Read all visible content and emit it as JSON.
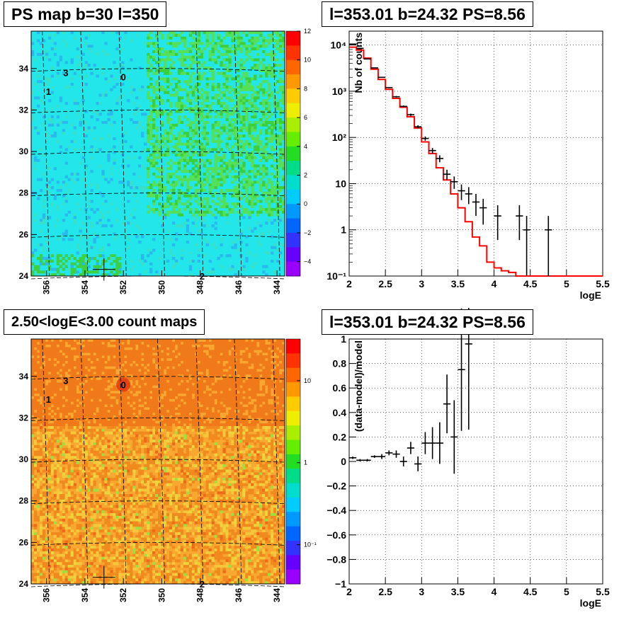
{
  "panels": {
    "ps_map": {
      "title": "PS map b=30 l=350"
    },
    "count_map": {
      "title": "2.50<logE<3.00 count maps"
    },
    "spectrum": {
      "title": "l=353.01 b=24.32 PS=8.56"
    },
    "residual": {
      "title": "l=353.01 b=24.32 PS=8.56"
    }
  },
  "colors": {
    "data_marker": "#000000",
    "model_line": "#ff0000",
    "grid": "#000000",
    "ps_map_background": "#22e6ea",
    "count_map_background": "#f8a830"
  },
  "chart_data": [
    {
      "id": "ps_map",
      "type": "heatmap",
      "title": "PS map b=30 l=350",
      "x_ticks": [
        "356",
        "354",
        "352",
        "350",
        "348",
        "346",
        "344"
      ],
      "y_ticks": [
        "24",
        "26",
        "28",
        "30",
        "32",
        "34"
      ],
      "xlim": [
        356.8,
        343.6
      ],
      "ylim": [
        24,
        35.8
      ],
      "colorbar_ticks": [
        "12",
        "10",
        "8",
        "6",
        "4",
        "2",
        "0",
        "−2",
        "−4"
      ],
      "colorbar_range": [
        -5,
        12
      ],
      "sources": [
        {
          "label": "0",
          "l": 352.0,
          "b": 33.6
        },
        {
          "label": "1",
          "l": 355.9,
          "b": 32.9
        },
        {
          "label": "2",
          "l": 347.9,
          "b": 24.0
        },
        {
          "label": "3",
          "l": 355.0,
          "b": 33.8
        }
      ],
      "marker": {
        "l": 353.01,
        "b": 24.32
      },
      "grid": true
    },
    {
      "id": "count_map",
      "type": "heatmap",
      "title": "2.50<logE<3.00 count maps",
      "x_ticks": [
        "356",
        "354",
        "352",
        "350",
        "348",
        "346",
        "344"
      ],
      "y_ticks": [
        "24",
        "26",
        "28",
        "30",
        "32",
        "34"
      ],
      "xlim": [
        356.8,
        343.6
      ],
      "ylim": [
        24,
        35.8
      ],
      "colorbar_ticks": [
        "10",
        "1",
        "10⁻¹"
      ],
      "colorbar_scale": "log",
      "sources": [
        {
          "label": "0",
          "l": 352.0,
          "b": 33.6
        },
        {
          "label": "1",
          "l": 355.9,
          "b": 32.9
        },
        {
          "label": "2",
          "l": 347.9,
          "b": 24.0
        },
        {
          "label": "3",
          "l": 355.0,
          "b": 33.8
        }
      ],
      "marker": {
        "l": 353.01,
        "b": 24.32
      },
      "grid": true
    },
    {
      "id": "spectrum",
      "type": "line",
      "title": "l=353.01 b=24.32 PS=8.56",
      "xlabel": "logE",
      "ylabel": "Nb of counts",
      "xlim": [
        2,
        5.5
      ],
      "ylim": [
        0.1,
        20000
      ],
      "yscale": "log",
      "x_ticks": [
        "2",
        "2.5",
        "3",
        "3.5",
        "4",
        "4.5",
        "5",
        "5.5"
      ],
      "y_ticks": [
        "10⁻¹",
        "1",
        "10",
        "10²",
        "10³",
        "10⁴"
      ],
      "grid": true,
      "series": [
        {
          "kind": "model",
          "bin_edges": [
            2.0,
            2.1,
            2.2,
            2.3,
            2.4,
            2.5,
            2.6,
            2.7,
            2.8,
            2.9,
            3.0,
            3.1,
            3.2,
            3.3,
            3.4,
            3.5,
            3.6,
            3.7,
            3.8,
            3.9,
            4.0,
            4.1,
            4.2,
            4.3,
            4.4,
            5.5
          ],
          "values": [
            9000,
            7800,
            5200,
            3000,
            1800,
            1100,
            700,
            450,
            280,
            160,
            80,
            45,
            22,
            12,
            6,
            3,
            1.5,
            0.7,
            0.45,
            0.2,
            0.15,
            0.13,
            0.12,
            0.1,
            0.1
          ]
        },
        {
          "kind": "data",
          "points": [
            {
              "x": 2.05,
              "y": 10500,
              "err": 100
            },
            {
              "x": 2.15,
              "y": 8500,
              "err": 90
            },
            {
              "x": 2.25,
              "y": 5000,
              "err": 70
            },
            {
              "x": 2.35,
              "y": 3200,
              "err": 55
            },
            {
              "x": 2.45,
              "y": 2000,
              "err": 45
            },
            {
              "x": 2.55,
              "y": 1200,
              "err": 35
            },
            {
              "x": 2.65,
              "y": 760,
              "err": 28
            },
            {
              "x": 2.75,
              "y": 470,
              "err": 22
            },
            {
              "x": 2.85,
              "y": 310,
              "err": 18
            },
            {
              "x": 2.95,
              "y": 170,
              "err": 13
            },
            {
              "x": 3.05,
              "y": 95,
              "err": 10
            },
            {
              "x": 3.15,
              "y": 52,
              "err": 7
            },
            {
              "x": 3.25,
              "y": 35,
              "err": 6
            },
            {
              "x": 3.35,
              "y": 16,
              "err": 4
            },
            {
              "x": 3.45,
              "y": 11,
              "err": 3.3
            },
            {
              "x": 3.55,
              "y": 7,
              "err": 2.6
            },
            {
              "x": 3.65,
              "y": 6,
              "err": 2.4
            },
            {
              "x": 3.75,
              "y": 4,
              "err": 2
            },
            {
              "x": 3.85,
              "y": 3,
              "err": 1.7
            },
            {
              "x": 4.05,
              "y": 2,
              "err": 1.4
            },
            {
              "x": 4.35,
              "y": 2,
              "err": 1.4
            },
            {
              "x": 4.45,
              "y": 1,
              "err": 1
            },
            {
              "x": 4.75,
              "y": 1,
              "err": 1
            }
          ]
        }
      ]
    },
    {
      "id": "residual",
      "type": "scatter",
      "title": "l=353.01 b=24.32 PS=8.56",
      "xlabel": "logE",
      "ylabel": "(data-model)/model",
      "xlim": [
        2,
        5.5
      ],
      "ylim": [
        -1,
        1
      ],
      "x_ticks": [
        "2",
        "2.5",
        "3",
        "3.5",
        "4",
        "4.5",
        "5",
        "5.5"
      ],
      "y_ticks": [
        "−1",
        "−0.8",
        "−0.6",
        "−0.4",
        "−0.2",
        "0",
        "0.2",
        "0.4",
        "0.6",
        "0.8",
        "1"
      ],
      "grid": true,
      "series": [
        {
          "kind": "data",
          "points": [
            {
              "x": 2.05,
              "y": 0.03,
              "err": 0.01
            },
            {
              "x": 2.15,
              "y": 0.01,
              "err": 0.01
            },
            {
              "x": 2.25,
              "y": 0.01,
              "err": 0.01
            },
            {
              "x": 2.35,
              "y": 0.04,
              "err": 0.01
            },
            {
              "x": 2.45,
              "y": 0.04,
              "err": 0.02
            },
            {
              "x": 2.55,
              "y": 0.07,
              "err": 0.02
            },
            {
              "x": 2.65,
              "y": 0.06,
              "err": 0.03
            },
            {
              "x": 2.75,
              "y": 0.0,
              "err": 0.04
            },
            {
              "x": 2.85,
              "y": 0.11,
              "err": 0.05
            },
            {
              "x": 2.95,
              "y": -0.02,
              "err": 0.06
            },
            {
              "x": 3.05,
              "y": 0.15,
              "err": 0.09
            },
            {
              "x": 3.15,
              "y": 0.15,
              "err": 0.13
            },
            {
              "x": 3.25,
              "y": 0.15,
              "err": 0.17
            },
            {
              "x": 3.35,
              "y": 0.47,
              "err": 0.24
            },
            {
              "x": 3.45,
              "y": 0.2,
              "err": 0.3
            },
            {
              "x": 3.55,
              "y": 0.75,
              "err": 0.5
            },
            {
              "x": 3.65,
              "y": 0.96,
              "err": 0.7
            }
          ]
        }
      ]
    }
  ]
}
